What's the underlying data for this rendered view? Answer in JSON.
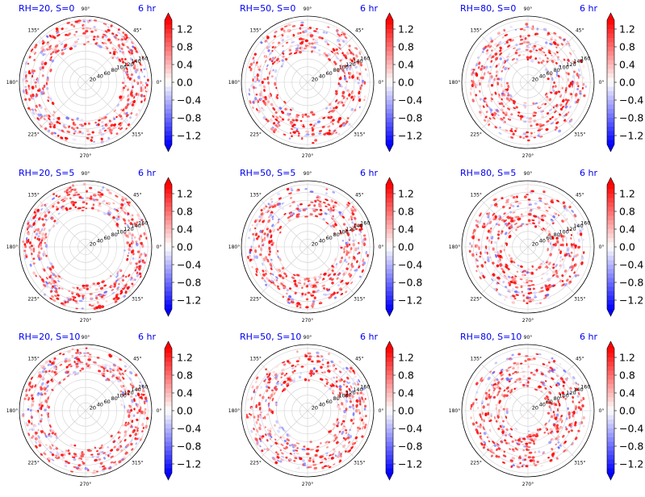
{
  "figure": {
    "colormap": "bwr",
    "colorbar": {
      "ticks": [
        1.2,
        0.8,
        0.4,
        0.0,
        -0.4,
        -0.8,
        -1.2
      ],
      "tick_labels": [
        "1.2",
        "0.8",
        "0.4",
        "0.0",
        "−0.4",
        "−0.8",
        "−1.2"
      ],
      "range": [
        -1.4,
        1.4
      ],
      "extend": "both"
    }
  },
  "chart_data": [
    {
      "type": "polar-scatter",
      "title_left": "RH=20, S=0",
      "title_right": "6 hr",
      "rh": 20,
      "s": 0
    },
    {
      "type": "polar-scatter",
      "title_left": "RH=50, S=0",
      "title_right": "6 hr",
      "rh": 50,
      "s": 0
    },
    {
      "type": "polar-scatter",
      "title_left": "RH=80, S=0",
      "title_right": "6 hr",
      "rh": 80,
      "s": 0
    },
    {
      "type": "polar-scatter",
      "title_left": "RH=20, S=5",
      "title_right": "6 hr",
      "rh": 20,
      "s": 5
    },
    {
      "type": "polar-scatter",
      "title_left": "RH=50, S=5",
      "title_right": "6 hr",
      "rh": 50,
      "s": 5
    },
    {
      "type": "polar-scatter",
      "title_left": "RH=80, S=5",
      "title_right": "6 hr",
      "rh": 80,
      "s": 5
    },
    {
      "type": "polar-scatter",
      "title_left": "RH=20, S=10",
      "title_right": "6 hr",
      "rh": 20,
      "s": 10
    },
    {
      "type": "polar-scatter",
      "title_left": "RH=50, S=10",
      "title_right": "6 hr",
      "rh": 50,
      "s": 10
    },
    {
      "type": "polar-scatter",
      "title_left": "RH=80, S=10",
      "title_right": "6 hr",
      "rh": 80,
      "s": 10
    }
  ],
  "polar_axes": {
    "angle_ticks": [
      0,
      45,
      90,
      135,
      180,
      225,
      270,
      315
    ],
    "angle_labels": [
      "0°",
      "45°",
      "90°",
      "135°",
      "180°",
      "225°",
      "270°",
      "315°"
    ],
    "radial_ticks": [
      20,
      40,
      60,
      80,
      100,
      120,
      140,
      160
    ],
    "radial_labels": [
      "20",
      "40",
      "60",
      "80",
      "100",
      "120",
      "140",
      "160"
    ],
    "rmax": 170,
    "radial_label_angle_deg": 22.5
  }
}
